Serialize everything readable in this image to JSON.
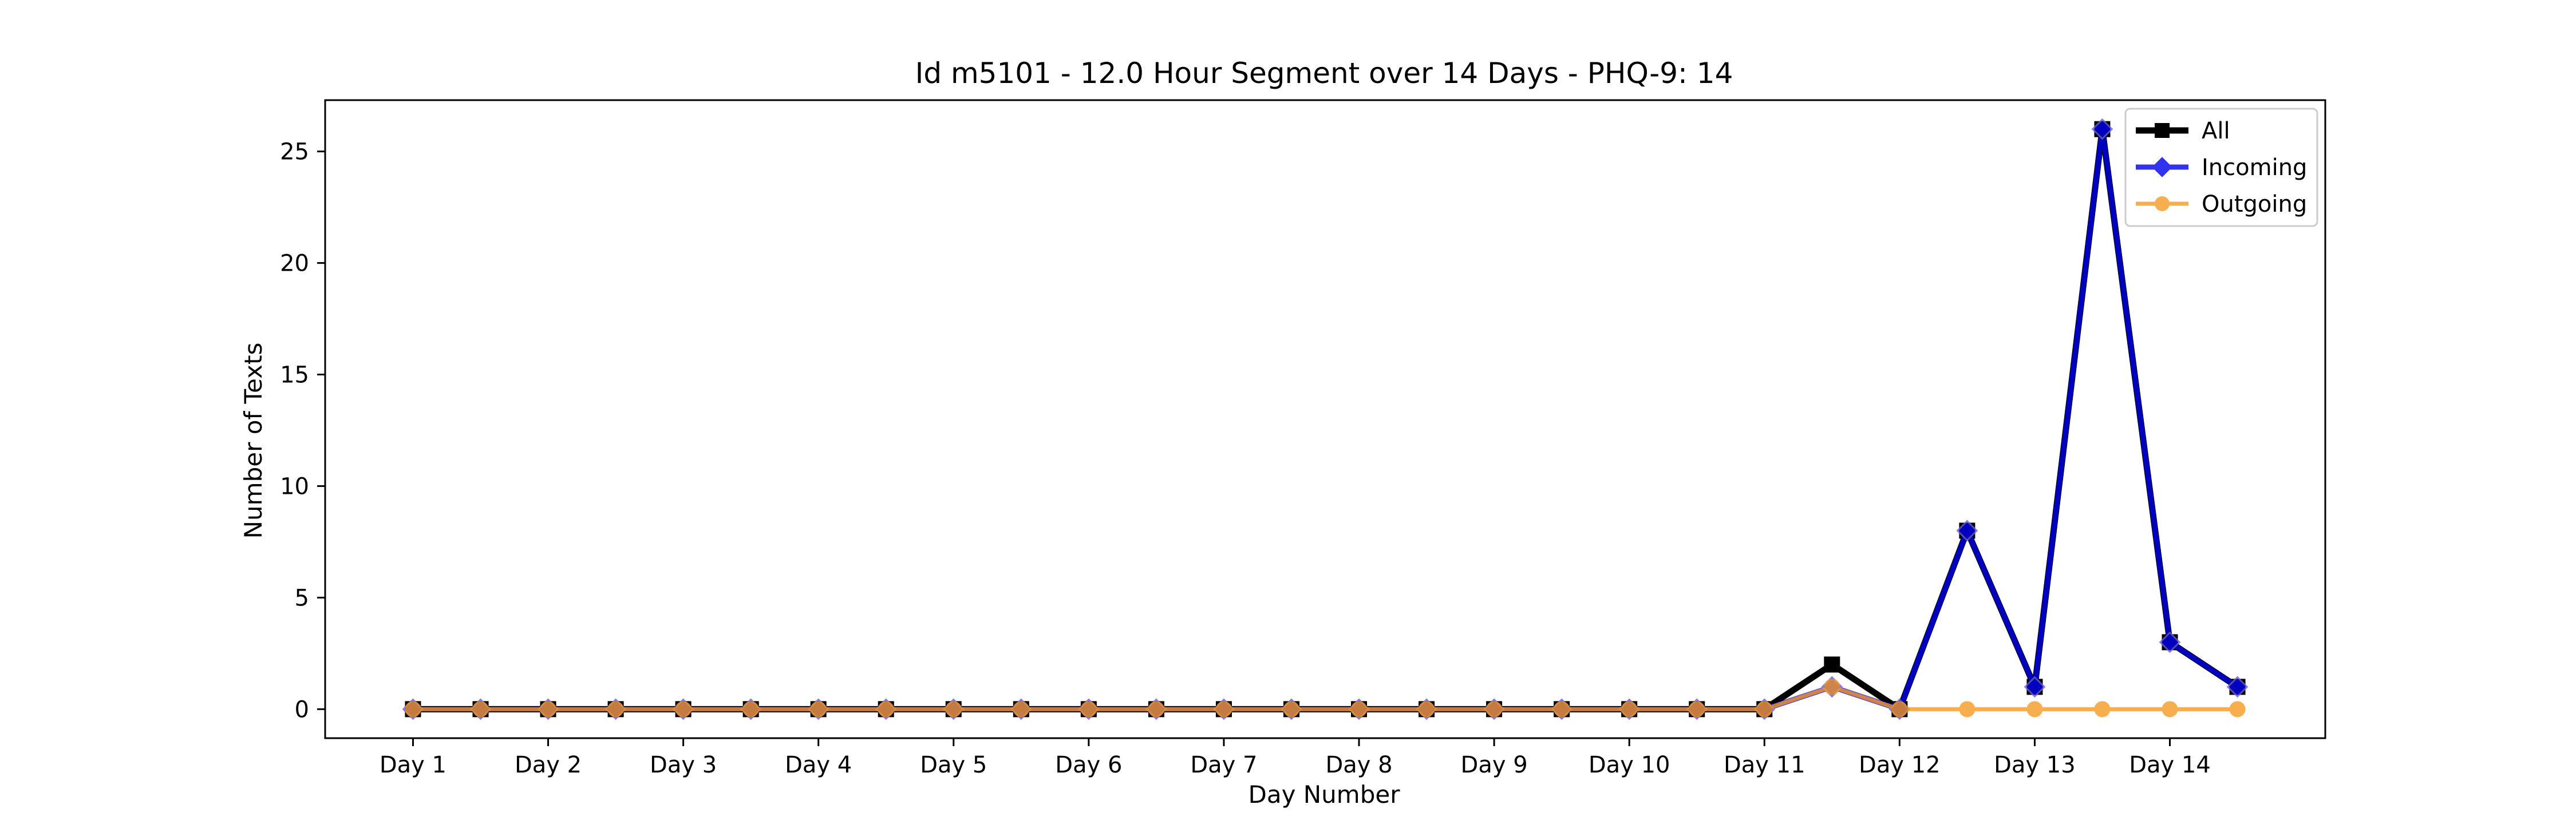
{
  "chart_data": {
    "type": "line",
    "title": "Id m5101 - 12.0 Hour Segment over 14 Days - PHQ-9: 14",
    "xlabel": "Day Number",
    "ylabel": "Number of Texts",
    "x_tick_labels": [
      "Day 1",
      "Day 2",
      "Day 3",
      "Day 4",
      "Day 5",
      "Day 6",
      "Day 7",
      "Day 8",
      "Day 9",
      "Day 10",
      "Day 11",
      "Day 12",
      "Day 13",
      "Day 14"
    ],
    "x_segments": [
      1,
      1.5,
      2,
      2.5,
      3,
      3.5,
      4,
      4.5,
      5,
      5.5,
      6,
      6.5,
      7,
      7.5,
      8,
      8.5,
      9,
      9.5,
      10,
      10.5,
      11,
      11.5,
      12,
      12.5,
      13,
      13.5,
      14,
      14.5
    ],
    "xlim": [
      0.35,
      15.15
    ],
    "ylim": [
      -1.3,
      27.3
    ],
    "y_ticks": [
      0,
      5,
      10,
      15,
      20,
      25
    ],
    "grid": false,
    "legend_position": "upper right",
    "series": [
      {
        "name": "All",
        "color": "#000000",
        "marker": "square",
        "values": [
          0,
          0,
          0,
          0,
          0,
          0,
          0,
          0,
          0,
          0,
          0,
          0,
          0,
          0,
          0,
          0,
          0,
          0,
          0,
          0,
          0,
          2,
          0,
          8,
          1,
          26,
          3,
          1
        ]
      },
      {
        "name": "Incoming",
        "color": "#0000ee",
        "marker": "diamond",
        "values": [
          0,
          0,
          0,
          0,
          0,
          0,
          0,
          0,
          0,
          0,
          0,
          0,
          0,
          0,
          0,
          0,
          0,
          0,
          0,
          0,
          0,
          1,
          0,
          8,
          1,
          26,
          3,
          1
        ]
      },
      {
        "name": "Outgoing",
        "color": "#f59a23",
        "marker": "circle",
        "values": [
          0,
          0,
          0,
          0,
          0,
          0,
          0,
          0,
          0,
          0,
          0,
          0,
          0,
          0,
          0,
          0,
          0,
          0,
          0,
          0,
          0,
          1,
          0,
          0,
          0,
          0,
          0,
          0
        ]
      }
    ]
  }
}
